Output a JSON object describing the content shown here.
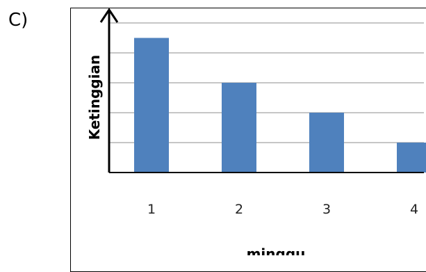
{
  "option_label": "C)",
  "chart_data": {
    "type": "bar",
    "categories": [
      "1",
      "2",
      "3",
      "4"
    ],
    "values": [
      4.5,
      3,
      2,
      1
    ],
    "xlabel": "minggu",
    "ylabel": "Ketinggian",
    "ylim": [
      0,
      5
    ],
    "grid": true,
    "y_tick_labels_shown": false,
    "bar_color": "#4F81BD",
    "grid_color": "#8C8C8C"
  }
}
